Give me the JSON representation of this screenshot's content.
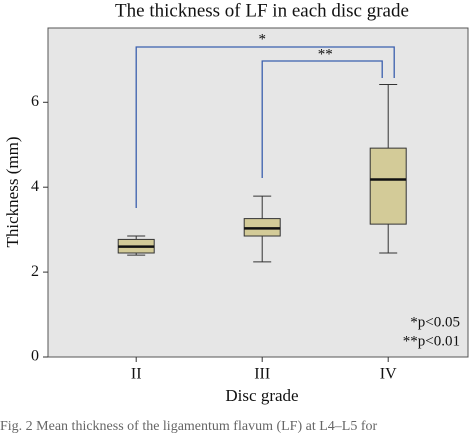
{
  "chart_data": {
    "type": "box",
    "title": "The thickness of LF in each disc grade",
    "x_label": "Disc grade",
    "y_label": "Thickness (mm)",
    "categories": [
      "II",
      "III",
      "IV"
    ],
    "min": [
      2.4,
      2.24,
      2.45
    ],
    "q1": [
      2.45,
      2.85,
      3.13
    ],
    "median": [
      2.6,
      3.03,
      4.18
    ],
    "q3": [
      2.77,
      3.26,
      4.92
    ],
    "max": [
      2.85,
      3.79,
      6.42
    ],
    "color": "#d3cb98",
    "bracket_color": "#3b5fae",
    "ylim": [
      0,
      7.75
    ],
    "yticks": [
      0,
      2,
      4,
      6
    ],
    "annotations": [
      "*",
      "**"
    ],
    "legend": [
      "*p<0.05",
      "**p<0.01"
    ],
    "caption": "Fig. 2  Mean thickness of the ligamentum flavum (LF) at L4–L5 for"
  }
}
